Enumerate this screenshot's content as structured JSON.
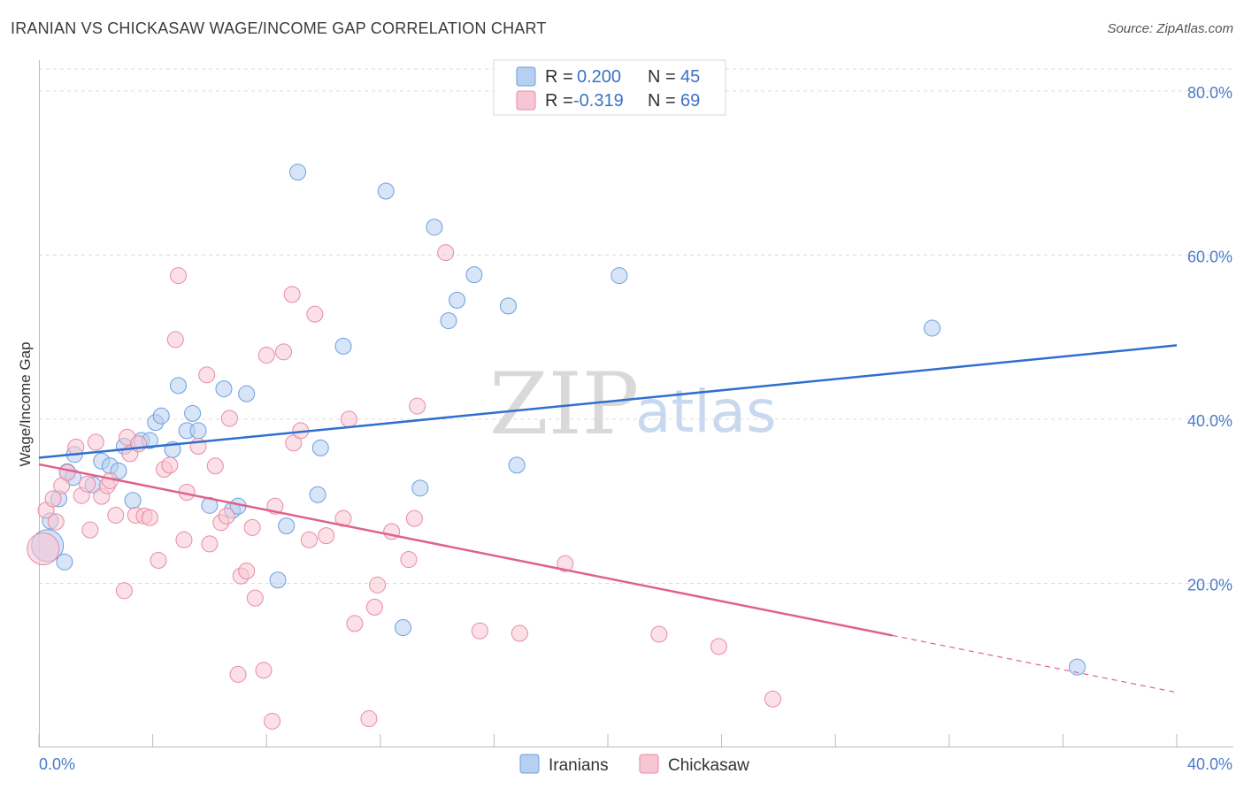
{
  "title": "IRANIAN VS CHICKASAW WAGE/INCOME GAP CORRELATION CHART",
  "source": "Source: ZipAtlas.com",
  "chart_data": {
    "type": "scatter",
    "title": "IRANIAN VS CHICKASAW WAGE/INCOME GAP CORRELATION CHART",
    "xlabel": "",
    "ylabel": "Wage/Income Gap",
    "xlim": [
      0,
      40
    ],
    "ylim": [
      0,
      83
    ],
    "x_tick_labels": [
      {
        "value": 0,
        "label": "0.0%"
      },
      {
        "value": 40,
        "label": "40.0%"
      }
    ],
    "y_tick_labels": [
      {
        "value": 20,
        "label": "20.0%"
      },
      {
        "value": 40,
        "label": "40.0%"
      },
      {
        "value": 60,
        "label": "60.0%"
      },
      {
        "value": 80,
        "label": "80.0%"
      }
    ],
    "watermark": {
      "zip": "ZIP",
      "atlas": "atlas"
    },
    "legend": {
      "position": "top-center",
      "r_label": "R =",
      "n_label": "N =",
      "entries": [
        {
          "name": "Iranians",
          "r": "0.200",
          "n": "45"
        },
        {
          "name": "Chickasaw",
          "r": "-0.319",
          "n": "69"
        }
      ]
    },
    "series": [
      {
        "name": "Iranians",
        "color": "#6a9fe0",
        "fill": "#b7cff1",
        "trend_color": "#2f6fcf",
        "trend": {
          "x0": 0,
          "y0": 35.3,
          "x1": 40,
          "y1": 49.0,
          "dash_from": null
        },
        "points": [
          {
            "x": 0.3,
            "y": 24.6,
            "big": true
          },
          {
            "x": 0.4,
            "y": 27.6
          },
          {
            "x": 0.7,
            "y": 30.3
          },
          {
            "x": 0.9,
            "y": 22.6
          },
          {
            "x": 1.0,
            "y": 33.6
          },
          {
            "x": 1.2,
            "y": 32.9
          },
          {
            "x": 1.25,
            "y": 35.7
          },
          {
            "x": 1.9,
            "y": 32.0
          },
          {
            "x": 2.2,
            "y": 34.9
          },
          {
            "x": 2.5,
            "y": 34.3
          },
          {
            "x": 2.8,
            "y": 33.7
          },
          {
            "x": 3.0,
            "y": 36.7
          },
          {
            "x": 3.3,
            "y": 30.1
          },
          {
            "x": 3.6,
            "y": 37.4
          },
          {
            "x": 3.9,
            "y": 37.4
          },
          {
            "x": 4.1,
            "y": 39.6
          },
          {
            "x": 4.3,
            "y": 40.4
          },
          {
            "x": 4.7,
            "y": 36.3
          },
          {
            "x": 4.9,
            "y": 44.1
          },
          {
            "x": 5.2,
            "y": 38.6
          },
          {
            "x": 5.4,
            "y": 40.7
          },
          {
            "x": 5.6,
            "y": 38.6
          },
          {
            "x": 6.0,
            "y": 29.5
          },
          {
            "x": 6.5,
            "y": 43.7
          },
          {
            "x": 6.8,
            "y": 28.9
          },
          {
            "x": 7.0,
            "y": 29.4
          },
          {
            "x": 7.3,
            "y": 43.1
          },
          {
            "x": 8.4,
            "y": 20.4
          },
          {
            "x": 8.7,
            "y": 27.0
          },
          {
            "x": 9.1,
            "y": 70.1
          },
          {
            "x": 9.8,
            "y": 30.8
          },
          {
            "x": 9.9,
            "y": 36.5
          },
          {
            "x": 10.7,
            "y": 48.9
          },
          {
            "x": 12.8,
            "y": 14.6
          },
          {
            "x": 12.2,
            "y": 67.8
          },
          {
            "x": 13.4,
            "y": 31.6
          },
          {
            "x": 13.9,
            "y": 63.4
          },
          {
            "x": 14.4,
            "y": 52.0
          },
          {
            "x": 14.7,
            "y": 54.5
          },
          {
            "x": 15.3,
            "y": 57.6
          },
          {
            "x": 16.5,
            "y": 53.8
          },
          {
            "x": 16.8,
            "y": 34.4
          },
          {
            "x": 20.4,
            "y": 57.5
          },
          {
            "x": 31.4,
            "y": 51.1
          },
          {
            "x": 36.5,
            "y": 9.8
          }
        ]
      },
      {
        "name": "Chickasaw",
        "color": "#e88aa6",
        "fill": "#f7c6d4",
        "trend_color": "#e0628c",
        "trend": {
          "x0": 0,
          "y0": 34.5,
          "x1": 40,
          "y1": 6.7,
          "dash_from": 30.0
        },
        "points": [
          {
            "x": 0.15,
            "y": 24.2,
            "big": true
          },
          {
            "x": 0.25,
            "y": 28.9
          },
          {
            "x": 0.5,
            "y": 30.3
          },
          {
            "x": 0.6,
            "y": 27.5
          },
          {
            "x": 0.8,
            "y": 31.9
          },
          {
            "x": 1.0,
            "y": 33.5
          },
          {
            "x": 1.3,
            "y": 36.6
          },
          {
            "x": 1.5,
            "y": 30.7
          },
          {
            "x": 1.7,
            "y": 32.1
          },
          {
            "x": 1.8,
            "y": 26.5
          },
          {
            "x": 2.0,
            "y": 37.2
          },
          {
            "x": 2.2,
            "y": 30.6
          },
          {
            "x": 2.4,
            "y": 31.9
          },
          {
            "x": 2.5,
            "y": 32.5
          },
          {
            "x": 2.7,
            "y": 28.3
          },
          {
            "x": 3.0,
            "y": 19.1
          },
          {
            "x": 3.1,
            "y": 37.8
          },
          {
            "x": 3.2,
            "y": 35.8
          },
          {
            "x": 3.4,
            "y": 28.3
          },
          {
            "x": 3.5,
            "y": 37.0
          },
          {
            "x": 3.7,
            "y": 28.2
          },
          {
            "x": 3.9,
            "y": 28.0
          },
          {
            "x": 4.2,
            "y": 22.8
          },
          {
            "x": 4.4,
            "y": 33.9
          },
          {
            "x": 4.6,
            "y": 34.4
          },
          {
            "x": 4.8,
            "y": 49.7
          },
          {
            "x": 4.9,
            "y": 57.5
          },
          {
            "x": 5.1,
            "y": 25.3
          },
          {
            "x": 5.2,
            "y": 31.1
          },
          {
            "x": 5.6,
            "y": 36.7
          },
          {
            "x": 5.9,
            "y": 45.4
          },
          {
            "x": 6.0,
            "y": 24.8
          },
          {
            "x": 6.2,
            "y": 34.3
          },
          {
            "x": 6.4,
            "y": 27.4
          },
          {
            "x": 6.6,
            "y": 28.2
          },
          {
            "x": 6.7,
            "y": 40.1
          },
          {
            "x": 7.0,
            "y": 8.9
          },
          {
            "x": 7.1,
            "y": 20.9
          },
          {
            "x": 7.3,
            "y": 21.5
          },
          {
            "x": 7.5,
            "y": 26.8
          },
          {
            "x": 7.6,
            "y": 18.2
          },
          {
            "x": 7.9,
            "y": 9.4
          },
          {
            "x": 8.0,
            "y": 47.8
          },
          {
            "x": 8.2,
            "y": 3.2
          },
          {
            "x": 8.3,
            "y": 29.4
          },
          {
            "x": 8.6,
            "y": 48.2
          },
          {
            "x": 8.9,
            "y": 55.2
          },
          {
            "x": 8.95,
            "y": 37.1
          },
          {
            "x": 9.2,
            "y": 38.6
          },
          {
            "x": 9.5,
            "y": 25.3
          },
          {
            "x": 9.7,
            "y": 52.8
          },
          {
            "x": 10.1,
            "y": 25.8
          },
          {
            "x": 10.7,
            "y": 27.9
          },
          {
            "x": 10.9,
            "y": 40.0
          },
          {
            "x": 11.1,
            "y": 15.1
          },
          {
            "x": 11.6,
            "y": 3.5
          },
          {
            "x": 11.8,
            "y": 17.1
          },
          {
            "x": 11.9,
            "y": 19.8
          },
          {
            "x": 12.4,
            "y": 26.3
          },
          {
            "x": 13.0,
            "y": 22.9
          },
          {
            "x": 13.2,
            "y": 27.9
          },
          {
            "x": 13.3,
            "y": 41.6
          },
          {
            "x": 14.3,
            "y": 60.3
          },
          {
            "x": 15.5,
            "y": 14.2
          },
          {
            "x": 16.9,
            "y": 13.9
          },
          {
            "x": 18.5,
            "y": 22.4
          },
          {
            "x": 21.8,
            "y": 13.8
          },
          {
            "x": 23.9,
            "y": 12.3
          },
          {
            "x": 25.8,
            "y": 5.9
          }
        ]
      }
    ]
  }
}
